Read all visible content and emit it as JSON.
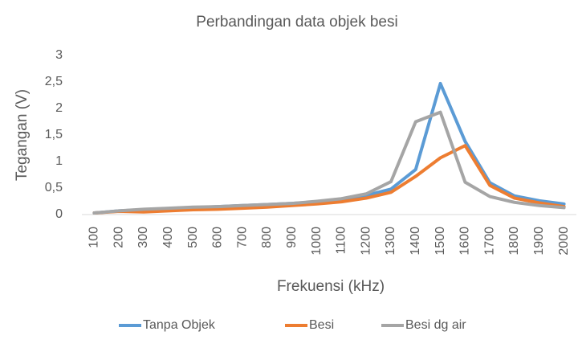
{
  "chart_data": {
    "type": "line",
    "title": "Perbandingan data objek besi",
    "x_label": "Frekuensi (kHz)",
    "y_label": "Tegangan (V)",
    "categories": [
      "100",
      "200",
      "300",
      "400",
      "500",
      "600",
      "700",
      "800",
      "900",
      "1000",
      "1100",
      "1200",
      "1300",
      "1400",
      "1500",
      "1600",
      "1700",
      "1800",
      "1900",
      "2000"
    ],
    "series": [
      {
        "name": "Tanpa Objek",
        "color": "#5b9bd5",
        "values": [
          0.03,
          0.07,
          0.09,
          0.11,
          0.13,
          0.15,
          0.17,
          0.19,
          0.21,
          0.24,
          0.29,
          0.36,
          0.48,
          0.85,
          2.47,
          1.38,
          0.6,
          0.35,
          0.26,
          0.2
        ]
      },
      {
        "name": "Besi",
        "color": "#ed7d31",
        "values": [
          0.03,
          0.06,
          0.05,
          0.07,
          0.09,
          0.1,
          0.12,
          0.14,
          0.17,
          0.2,
          0.24,
          0.31,
          0.42,
          0.72,
          1.07,
          1.3,
          0.55,
          0.31,
          0.22,
          0.15
        ]
      },
      {
        "name": "Besi dg air",
        "color": "#a5a5a5",
        "values": [
          0.03,
          0.07,
          0.1,
          0.12,
          0.14,
          0.15,
          0.17,
          0.19,
          0.21,
          0.25,
          0.3,
          0.39,
          0.62,
          1.75,
          1.93,
          0.61,
          0.34,
          0.23,
          0.17,
          0.13
        ]
      }
    ],
    "ylim": [
      0,
      3
    ],
    "yticks": [
      0,
      {
        "value": 0.5,
        "label": "0,5"
      },
      1,
      {
        "value": 1.5,
        "label": "1,5"
      },
      2,
      {
        "value": 2.5,
        "label": "2,5"
      },
      3
    ],
    "grid": false,
    "legend": "bottom"
  }
}
